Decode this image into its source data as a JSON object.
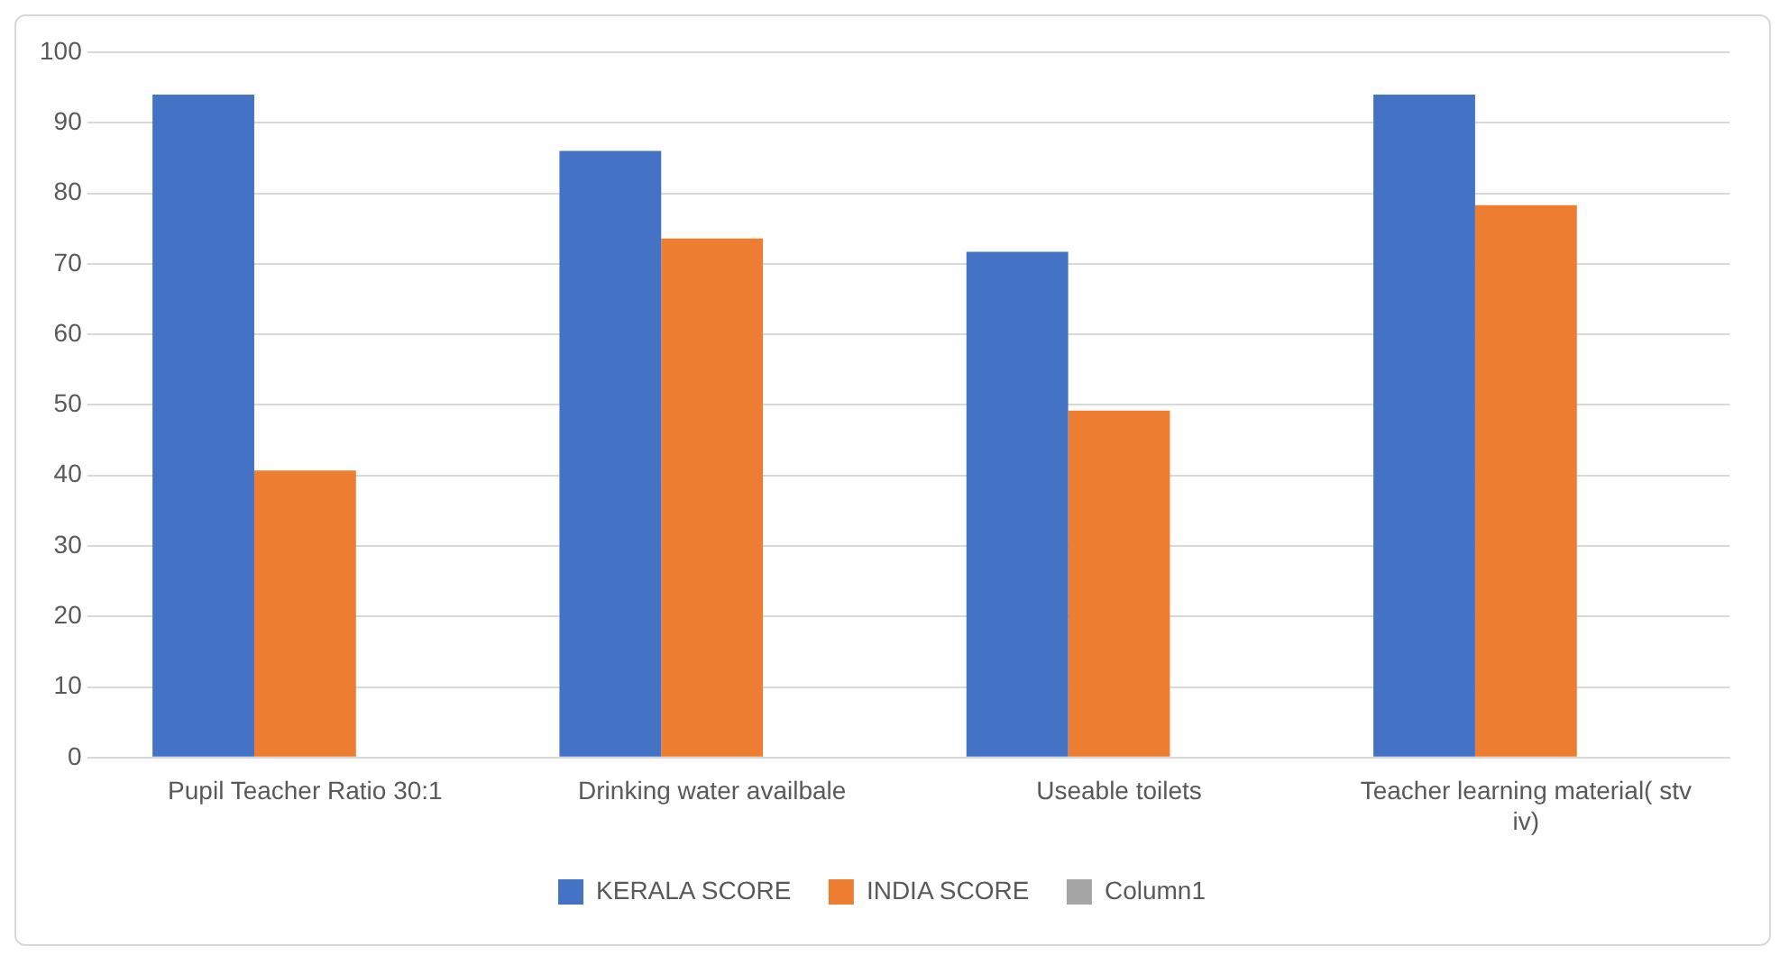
{
  "chart_data": {
    "type": "bar",
    "categories": [
      "Pupil Teacher Ratio 30:1",
      "Drinking water availbale",
      "Useable toilets",
      "Teacher learning material( stv iv)"
    ],
    "series": [
      {
        "name": "KERALA SCORE",
        "color": "#4472c4",
        "values": [
          94,
          86,
          71.7,
          94
        ]
      },
      {
        "name": "INDIA SCORE",
        "color": "#ed7d31",
        "values": [
          40.7,
          73.6,
          49.2,
          78.3
        ]
      },
      {
        "name": "Column1",
        "color": "#a5a5a5",
        "values": [
          null,
          null,
          null,
          null
        ]
      }
    ],
    "ylim": [
      0,
      100
    ],
    "yticks": [
      0,
      10,
      20,
      30,
      40,
      50,
      60,
      70,
      80,
      90,
      100
    ],
    "grid": "y",
    "legend": "bottom"
  }
}
